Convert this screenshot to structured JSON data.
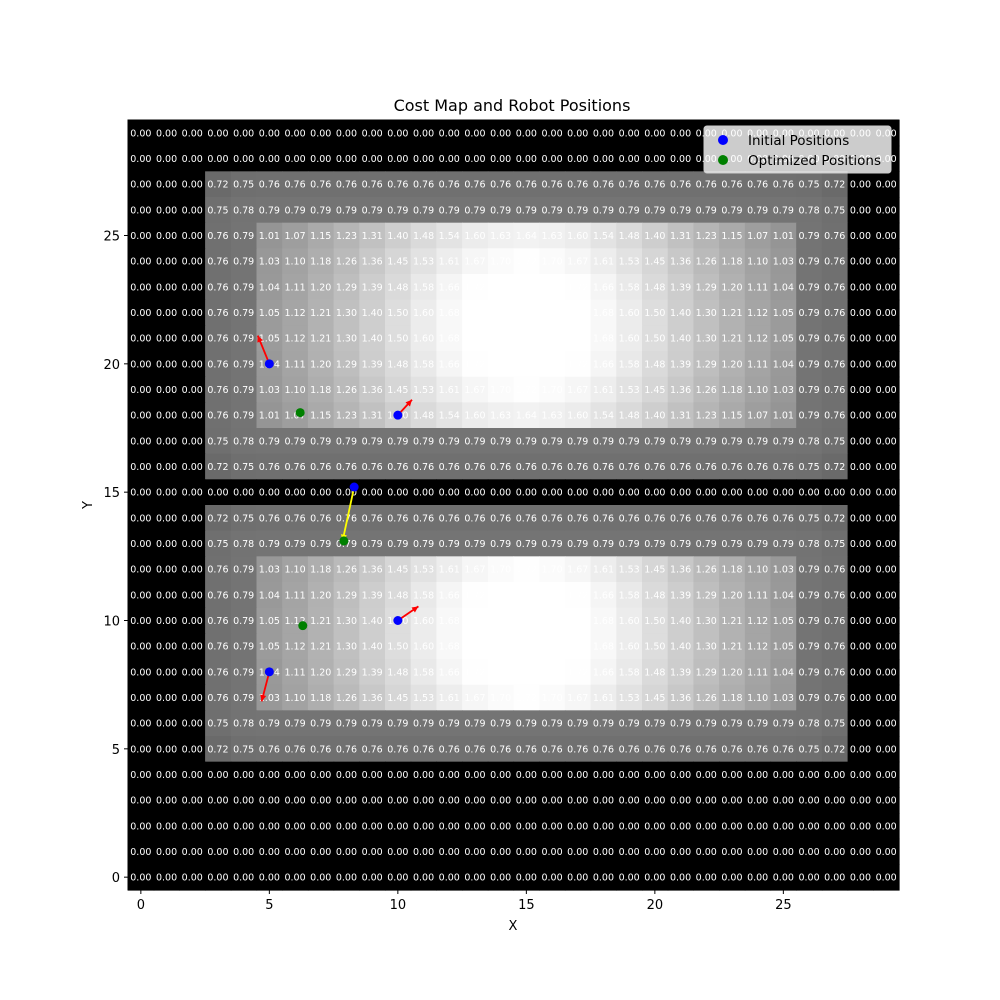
{
  "chart_data": {
    "type": "heatmap",
    "title": "Cost Map and Robot Positions",
    "xlabel": "X",
    "ylabel": "Y",
    "xlim": [
      -0.5,
      29.5
    ],
    "ylim": [
      -0.5,
      29.5
    ],
    "x_ticks": [
      0,
      5,
      10,
      15,
      20,
      25
    ],
    "y_ticks": [
      0,
      5,
      10,
      15,
      20,
      25
    ],
    "colormap": "gray",
    "cost_max": 1.73,
    "grid_size": 30,
    "rows_top_to_bottom": [
      "0.00 0.00 0.00 0.00 0.00 0.00 0.00 0.00 0.00 0.00 0.00 0.00 0.00 0.00 0.00 0.00 0.00 0.00 0.00 0.00 0.00 0.00 0.00 0.00 0.00 0.00 0.00 0.00 0.00 0.00",
      "0.00 0.00 0.00 0.00 0.00 0.00 0.00 0.00 0.00 0.00 0.00 0.00 0.00 0.00 0.00 0.00 0.00 0.00 0.00 0.00 0.00 0.00 0.00 0.00 0.00 0.00 0.00 0.00 0.00 0.00",
      "0.00 0.00 0.00 0.72 0.75 0.76 0.76 0.76 0.76 0.76 0.76 0.76 0.76 0.76 0.76 0.76 0.76 0.76 0.76 0.76 0.76 0.76 0.76 0.76 0.76 0.76 0.75 0.72 0.00 0.00",
      "0.00 0.00 0.00 0.75 0.78 0.79 0.79 0.79 0.79 0.79 0.79 0.79 0.79 0.79 0.79 0.79 0.79 0.79 0.79 0.79 0.79 0.79 0.79 0.79 0.79 0.79 0.78 0.75 0.00 0.00",
      "0.00 0.00 0.00 0.76 0.79 1.01 1.07 1.15 1.23 1.31 1.40 1.48 1.54 1.60 1.63 1.64 1.63 1.60 1.54 1.48 1.40 1.31 1.23 1.15 1.07 1.01 0.79 0.76 0.00 0.00",
      "0.00 0.00 0.00 0.76 0.79 1.03 1.10 1.18 1.26 1.36 1.45 1.53 1.61 1.67 1.70 1.72 1.70 1.67 1.61 1.53 1.45 1.36 1.26 1.18 1.10 1.03 0.79 0.76 0.00 0.00",
      "0.00 0.00 0.00 0.76 0.79 1.04 1.11 1.20 1.29 1.39 1.48 1.58 1.66 1.72 1.73 1.73 1.73 1.72 1.66 1.58 1.48 1.39 1.29 1.20 1.11 1.04 0.79 0.76 0.00 0.00",
      "0.00 0.00 0.00 0.76 0.79 1.05 1.12 1.21 1.30 1.40 1.50 1.60 1.68 1.73 1.73 1.73 1.73 1.73 1.68 1.60 1.50 1.40 1.30 1.21 1.12 1.05 0.79 0.76 0.00 0.00",
      "0.00 0.00 0.00 0.76 0.79 1.05 1.12 1.21 1.30 1.40 1.50 1.60 1.68 1.73 1.73 1.73 1.73 1.73 1.68 1.60 1.50 1.40 1.30 1.21 1.12 1.05 0.79 0.76 0.00 0.00",
      "0.00 0.00 0.00 0.76 0.79 1.04 1.11 1.20 1.29 1.39 1.48 1.58 1.66 1.72 1.73 1.73 1.73 1.72 1.66 1.58 1.48 1.39 1.29 1.20 1.11 1.04 0.79 0.76 0.00 0.00",
      "0.00 0.00 0.00 0.76 0.79 1.03 1.10 1.18 1.26 1.36 1.45 1.53 1.61 1.67 1.70 1.72 1.70 1.67 1.61 1.53 1.45 1.36 1.26 1.18 1.10 1.03 0.79 0.76 0.00 0.00",
      "0.00 0.00 0.00 0.76 0.79 1.01 1.07 1.15 1.23 1.31 1.40 1.48 1.54 1.60 1.63 1.64 1.63 1.60 1.54 1.48 1.40 1.31 1.23 1.15 1.07 1.01 0.79 0.76 0.00 0.00",
      "0.00 0.00 0.00 0.75 0.78 0.79 0.79 0.79 0.79 0.79 0.79 0.79 0.79 0.79 0.79 0.79 0.79 0.79 0.79 0.79 0.79 0.79 0.79 0.79 0.79 0.79 0.78 0.75 0.00 0.00",
      "0.00 0.00 0.00 0.72 0.75 0.76 0.76 0.76 0.76 0.76 0.76 0.76 0.76 0.76 0.76 0.76 0.76 0.76 0.76 0.76 0.76 0.76 0.76 0.76 0.76 0.76 0.75 0.72 0.00 0.00",
      "0.00 0.00 0.00 0.00 0.00 0.00 0.00 0.00 0.00 0.00 0.00 0.00 0.00 0.00 0.00 0.00 0.00 0.00 0.00 0.00 0.00 0.00 0.00 0.00 0.00 0.00 0.00 0.00 0.00 0.00",
      "0.00 0.00 0.00 0.72 0.75 0.76 0.76 0.76 0.76 0.76 0.76 0.76 0.76 0.76 0.76 0.76 0.76 0.76 0.76 0.76 0.76 0.76 0.76 0.76 0.76 0.76 0.75 0.72 0.00 0.00",
      "0.00 0.00 0.00 0.75 0.78 0.79 0.79 0.79 0.79 0.79 0.79 0.79 0.79 0.79 0.79 0.79 0.79 0.79 0.79 0.79 0.79 0.79 0.79 0.79 0.79 0.79 0.78 0.75 0.00 0.00",
      "0.00 0.00 0.00 0.76 0.79 1.03 1.10 1.18 1.26 1.36 1.45 1.53 1.61 1.67 1.70 1.72 1.70 1.67 1.61 1.53 1.45 1.36 1.26 1.18 1.10 1.03 0.79 0.76 0.00 0.00",
      "0.00 0.00 0.00 0.76 0.79 1.04 1.11 1.20 1.29 1.39 1.48 1.58 1.66 1.72 1.73 1.73 1.73 1.72 1.66 1.58 1.48 1.39 1.29 1.20 1.11 1.04 0.79 0.76 0.00 0.00",
      "0.00 0.00 0.00 0.76 0.79 1.05 1.12 1.21 1.30 1.40 1.50 1.60 1.68 1.73 1.73 1.73 1.73 1.73 1.68 1.60 1.50 1.40 1.30 1.21 1.12 1.05 0.79 0.76 0.00 0.00",
      "0.00 0.00 0.00 0.76 0.79 1.05 1.12 1.21 1.30 1.40 1.50 1.60 1.68 1.73 1.73 1.73 1.73 1.73 1.68 1.60 1.50 1.40 1.30 1.21 1.12 1.05 0.79 0.76 0.00 0.00",
      "0.00 0.00 0.00 0.76 0.79 1.04 1.11 1.20 1.29 1.39 1.48 1.58 1.66 1.72 1.73 1.73 1.73 1.72 1.66 1.58 1.48 1.39 1.29 1.20 1.11 1.04 0.79 0.76 0.00 0.00",
      "0.00 0.00 0.00 0.76 0.79 1.03 1.10 1.18 1.26 1.36 1.45 1.53 1.61 1.67 1.70 1.72 1.70 1.67 1.61 1.53 1.45 1.36 1.26 1.18 1.10 1.03 0.79 0.76 0.00 0.00",
      "0.00 0.00 0.00 0.75 0.78 0.79 0.79 0.79 0.79 0.79 0.79 0.79 0.79 0.79 0.79 0.79 0.79 0.79 0.79 0.79 0.79 0.79 0.79 0.79 0.79 0.79 0.78 0.75 0.00 0.00",
      "0.00 0.00 0.00 0.72 0.75 0.76 0.76 0.76 0.76 0.76 0.76 0.76 0.76 0.76 0.76 0.76 0.76 0.76 0.76 0.76 0.76 0.76 0.76 0.76 0.76 0.76 0.75 0.72 0.00 0.00",
      "0.00 0.00 0.00 0.00 0.00 0.00 0.00 0.00 0.00 0.00 0.00 0.00 0.00 0.00 0.00 0.00 0.00 0.00 0.00 0.00 0.00 0.00 0.00 0.00 0.00 0.00 0.00 0.00 0.00 0.00",
      "0.00 0.00 0.00 0.00 0.00 0.00 0.00 0.00 0.00 0.00 0.00 0.00 0.00 0.00 0.00 0.00 0.00 0.00 0.00 0.00 0.00 0.00 0.00 0.00 0.00 0.00 0.00 0.00 0.00 0.00",
      "0.00 0.00 0.00 0.00 0.00 0.00 0.00 0.00 0.00 0.00 0.00 0.00 0.00 0.00 0.00 0.00 0.00 0.00 0.00 0.00 0.00 0.00 0.00 0.00 0.00 0.00 0.00 0.00 0.00 0.00",
      "0.00 0.00 0.00 0.00 0.00 0.00 0.00 0.00 0.00 0.00 0.00 0.00 0.00 0.00 0.00 0.00 0.00 0.00 0.00 0.00 0.00 0.00 0.00 0.00 0.00 0.00 0.00 0.00 0.00 0.00",
      "0.00 0.00 0.00 0.00 0.00 0.00 0.00 0.00 0.00 0.00 0.00 0.00 0.00 0.00 0.00 0.00 0.00 0.00 0.00 0.00 0.00 0.00 0.00 0.00 0.00 0.00 0.00 0.00 0.00 0.00"
    ],
    "series": [
      {
        "name": "Initial Positions",
        "color": "#0000ff",
        "points": [
          [
            5,
            20
          ],
          [
            10,
            18
          ],
          [
            10,
            10
          ],
          [
            5,
            8
          ],
          [
            8.3,
            15.2
          ]
        ]
      },
      {
        "name": "Optimized Positions",
        "color": "#008000",
        "points": [
          [
            6.2,
            18.1
          ],
          [
            7.9,
            13.1
          ],
          [
            6.3,
            9.8
          ]
        ]
      }
    ],
    "arrows": [
      {
        "from": [
          5,
          20
        ],
        "to": [
          4.55,
          21.1
        ],
        "color": "#ff0000"
      },
      {
        "from": [
          10,
          18
        ],
        "to": [
          10.55,
          18.6
        ],
        "color": "#ff0000"
      },
      {
        "from": [
          10,
          10
        ],
        "to": [
          10.8,
          10.55
        ],
        "color": "#ff0000"
      },
      {
        "from": [
          5,
          8
        ],
        "to": [
          4.7,
          6.85
        ],
        "color": "#ff0000"
      },
      {
        "from": [
          8.3,
          15.2
        ],
        "to": [
          7.85,
          13.1
        ],
        "color": "#ffff00"
      }
    ],
    "legend": {
      "placement": "top-right",
      "entries": [
        {
          "label": "Initial Positions",
          "color": "#0000ff"
        },
        {
          "label": "Optimized Positions",
          "color": "#008000"
        }
      ]
    }
  }
}
